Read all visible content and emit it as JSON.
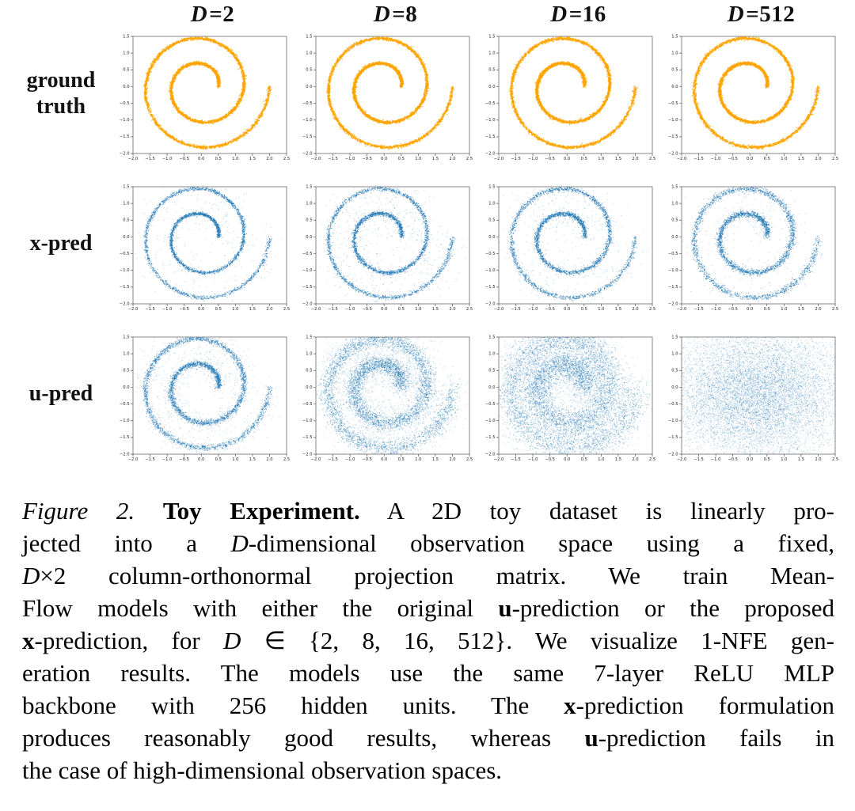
{
  "chart_data": {
    "type": "scatter",
    "description": "3x4 grid of 2D scatter plots; columns are observation dimensionality D, rows are ground truth / x-prediction / u-prediction 1-NFE samples of a two-turn spiral dataset",
    "col_var": "D",
    "col_eq": " = ",
    "col_values": [
      "2",
      "8",
      "16",
      "512"
    ],
    "rows": [
      "ground\ntruth",
      "x-pred",
      "u-pred"
    ],
    "xlim": [
      -2.0,
      2.5
    ],
    "ylim": [
      -2.0,
      1.5
    ],
    "xticks": [
      "−2.0",
      "−1.5",
      "−1.0",
      "−0.5",
      "0.0",
      "0.5",
      "1.0",
      "1.5",
      "2.0",
      "2.5"
    ],
    "yticks": [
      "1.5",
      "1.0",
      "0.5",
      "0.0",
      "−0.5",
      "−1.0",
      "−1.5",
      "−2.0"
    ],
    "grid": false,
    "legend": "none",
    "colors": {
      "gt": "#FFA500",
      "pred": "#1F77B4",
      "spine": "#555555",
      "tick_text": "#222222"
    },
    "spiral": {
      "turns": 2,
      "r0": 0.5,
      "r1": 2.0,
      "inner_tip": [
        0.5,
        0.0
      ],
      "outer_tip": [
        2.0,
        0.0
      ]
    },
    "cells": [
      [
        {
          "seed": 101,
          "color": "gt",
          "core": {
            "n": 4500,
            "jitter": 0.022,
            "alpha": 0.85,
            "dot": 1.3
          }
        },
        {
          "seed": 102,
          "color": "gt",
          "core": {
            "n": 4500,
            "jitter": 0.022,
            "alpha": 0.85,
            "dot": 1.3
          }
        },
        {
          "seed": 103,
          "color": "gt",
          "core": {
            "n": 4500,
            "jitter": 0.022,
            "alpha": 0.85,
            "dot": 1.3
          }
        },
        {
          "seed": 104,
          "color": "gt",
          "core": {
            "n": 4500,
            "jitter": 0.022,
            "alpha": 0.85,
            "dot": 1.3
          }
        }
      ],
      [
        {
          "seed": 201,
          "color": "pred",
          "core": {
            "n": 3000,
            "jitter": 0.028,
            "alpha": 0.6,
            "dot": 1.1
          },
          "halo": {
            "n": 300,
            "jitter": 0.3,
            "alpha": 0.35,
            "dot": 1.0
          }
        },
        {
          "seed": 202,
          "color": "pred",
          "core": {
            "n": 3000,
            "jitter": 0.032,
            "alpha": 0.6,
            "dot": 1.1
          },
          "halo": {
            "n": 620,
            "jitter": 0.32,
            "alpha": 0.35,
            "dot": 1.0
          }
        },
        {
          "seed": 203,
          "color": "pred",
          "core": {
            "n": 3000,
            "jitter": 0.035,
            "alpha": 0.6,
            "dot": 1.1
          },
          "halo": {
            "n": 460,
            "jitter": 0.3,
            "alpha": 0.35,
            "dot": 1.0
          }
        },
        {
          "seed": 204,
          "color": "pred",
          "core": {
            "n": 3000,
            "jitter": 0.045,
            "alpha": 0.6,
            "dot": 1.1
          },
          "halo": {
            "n": 400,
            "jitter": 0.22,
            "alpha": 0.35,
            "dot": 1.0
          }
        }
      ],
      [
        {
          "seed": 301,
          "color": "pred",
          "core": {
            "n": 3400,
            "jitter": 0.04,
            "alpha": 0.55,
            "dot": 1.1
          },
          "halo": {
            "n": 1000,
            "jitter": 0.2,
            "alpha": 0.32,
            "dot": 1.0
          }
        },
        {
          "seed": 302,
          "color": "pred",
          "core": {
            "n": 4600,
            "jitter": 0.12,
            "alpha": 0.45,
            "dot": 1.1
          },
          "halo": {
            "n": 2400,
            "jitter": 0.32,
            "alpha": 0.28,
            "dot": 1.0
          }
        },
        {
          "seed": 303,
          "color": "pred",
          "core": {
            "n": 5600,
            "jitter": 0.22,
            "alpha": 0.42,
            "dot": 1.1
          },
          "halo": {
            "n": 2700,
            "jitter": 0.4,
            "alpha": 0.26,
            "dot": 1.0
          }
        },
        {
          "seed": 304,
          "color": "pred",
          "noise": {
            "n": 9500,
            "cx": 0.15,
            "cy": -0.2,
            "sx": 1.3,
            "sy": 1.0,
            "alpha": 0.32,
            "dot": 1.0
          }
        }
      ]
    ]
  },
  "caption": {
    "lines": [
      {
        "justify": true,
        "segments": [
          {
            "t": "Figure 2.",
            "s": "i"
          },
          {
            "t": " ",
            "s": ""
          },
          {
            "t": "Toy Experiment.",
            "s": "b"
          },
          {
            "t": " A 2D toy dataset is linearly pro-",
            "s": ""
          }
        ]
      },
      {
        "justify": true,
        "segments": [
          {
            "t": "jected into a ",
            "s": ""
          },
          {
            "t": "D",
            "s": "i"
          },
          {
            "t": "-dimensional observation space using a fixed,",
            "s": ""
          }
        ]
      },
      {
        "justify": true,
        "segments": [
          {
            "t": "D",
            "s": "i"
          },
          {
            "t": "×2 column-orthonormal projection matrix. We train Mean-",
            "s": ""
          }
        ]
      },
      {
        "justify": true,
        "segments": [
          {
            "t": "Flow models with either the original ",
            "s": ""
          },
          {
            "t": "u",
            "s": "b"
          },
          {
            "t": "-prediction or the proposed",
            "s": ""
          }
        ]
      },
      {
        "justify": true,
        "segments": [
          {
            "t": "x",
            "s": "b"
          },
          {
            "t": "-prediction, for ",
            "s": ""
          },
          {
            "t": "D",
            "s": "i"
          },
          {
            "t": " ∈ {2, 8, 16, 512}. We visualize 1-NFE gen-",
            "s": ""
          }
        ]
      },
      {
        "justify": true,
        "segments": [
          {
            "t": "eration results. The models use the same 7-layer ReLU MLP",
            "s": ""
          }
        ]
      },
      {
        "justify": true,
        "segments": [
          {
            "t": "backbone with 256 hidden units. The ",
            "s": ""
          },
          {
            "t": "x",
            "s": "b"
          },
          {
            "t": "-prediction formulation",
            "s": ""
          }
        ]
      },
      {
        "justify": true,
        "segments": [
          {
            "t": "produces reasonably good results, whereas ",
            "s": ""
          },
          {
            "t": "u",
            "s": "b"
          },
          {
            "t": "-prediction fails in",
            "s": ""
          }
        ]
      },
      {
        "justify": false,
        "segments": [
          {
            "t": "the case of high-dimensional observation spaces.",
            "s": ""
          }
        ]
      }
    ]
  }
}
